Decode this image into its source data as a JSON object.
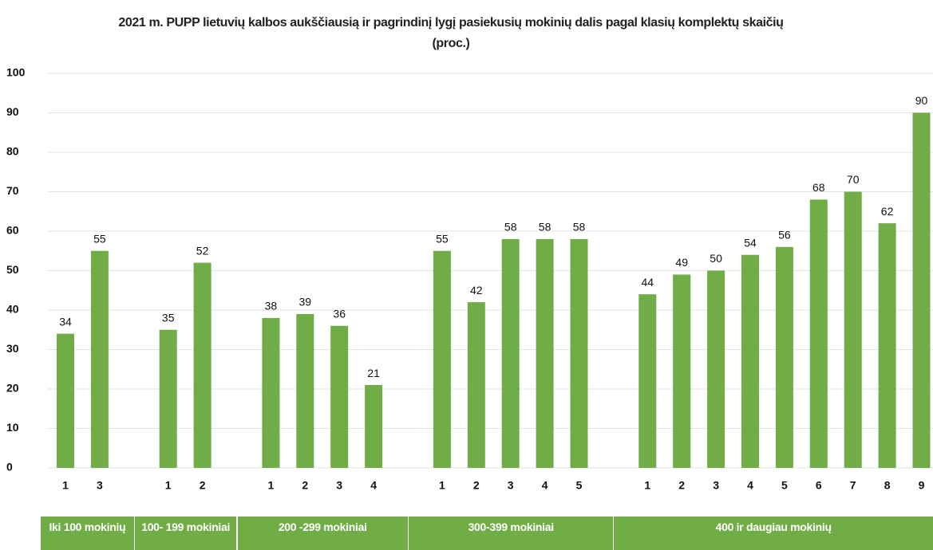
{
  "chart_data": {
    "type": "bar",
    "title": "2021 m. PUPP lietuvių kalbos aukščiausią ir pagrindinį lygį pasiekusių mokinių dalis pagal klasių komplektų skaičių (proc.)",
    "categories": [
      "1",
      "3",
      null,
      "1",
      "2",
      null,
      "1",
      "2",
      "3",
      "4",
      null,
      "1",
      "2",
      "3",
      "4",
      "5",
      null,
      "1",
      "2",
      "3",
      "4",
      "5",
      "6",
      "7",
      "8",
      "9"
    ],
    "values": [
      34,
      55,
      null,
      35,
      52,
      null,
      38,
      39,
      36,
      21,
      null,
      55,
      42,
      58,
      58,
      58,
      null,
      44,
      49,
      50,
      54,
      56,
      68,
      70,
      62,
      90
    ],
    "groups": [
      "Iki 100 mokinių",
      "100- 199 mokiniai",
      "200 -299 mokiniai",
      "300-399 mokiniai",
      "400 ir daugiau mokinių"
    ],
    "color": "#70ad47",
    "ylim": [
      0,
      100
    ],
    "yticks": [
      0,
      10,
      20,
      30,
      40,
      50,
      60,
      70,
      80,
      90,
      100
    ],
    "grid": true
  }
}
